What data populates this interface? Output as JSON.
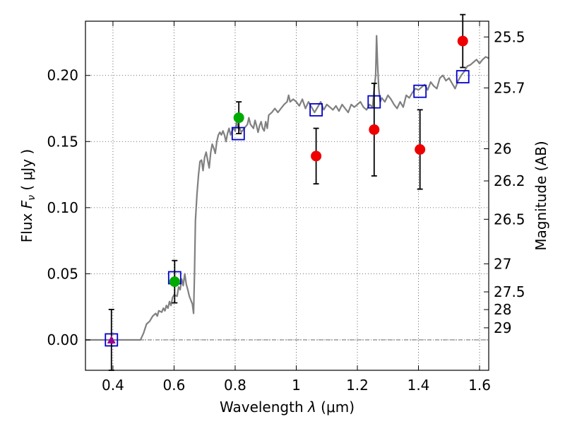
{
  "chart_data": {
    "type": "scatter",
    "title": "",
    "xlabel": {
      "main": "Wavelength ",
      "symbol": "λ",
      "unit": " (μm)"
    },
    "ylabel": {
      "main": "Flux  ",
      "symbol": "F",
      "sub": "ν",
      "unit": "  ( μJy )"
    },
    "ylabel_right": "Magnitude (AB)",
    "xlim": [
      0.31,
      1.63
    ],
    "ylim": [
      -0.023,
      0.241
    ],
    "x_ticks": [
      {
        "value": 0.4,
        "label": "0.4"
      },
      {
        "value": 0.6,
        "label": "0.6"
      },
      {
        "value": 0.8,
        "label": "0.8"
      },
      {
        "value": 1.0,
        "label": "1"
      },
      {
        "value": 1.2,
        "label": "1.2"
      },
      {
        "value": 1.4,
        "label": "1.4"
      },
      {
        "value": 1.6,
        "label": "1.6"
      }
    ],
    "y_ticks": [
      {
        "value": 0.0,
        "label": "0.00"
      },
      {
        "value": 0.05,
        "label": "0.05"
      },
      {
        "value": 0.1,
        "label": "0.10"
      },
      {
        "value": 0.15,
        "label": "0.15"
      },
      {
        "value": 0.2,
        "label": "0.20"
      }
    ],
    "mag_ticks": [
      {
        "label": "25.5",
        "mag": 25.5
      },
      {
        "label": "25.7",
        "mag": 25.7
      },
      {
        "label": "26",
        "mag": 26
      },
      {
        "label": "26.2",
        "mag": 26.2
      },
      {
        "label": "26.5",
        "mag": 26.5
      },
      {
        "label": "27",
        "mag": 27
      },
      {
        "label": "27.5",
        "mag": 27.5
      },
      {
        "label": "28",
        "mag": 28
      },
      {
        "label": "29",
        "mag": 29
      }
    ],
    "grid": true,
    "zero_line": true,
    "series": [
      {
        "name": "model spectrum",
        "kind": "line",
        "color": "#808080",
        "points": [
          [
            0.31,
            0.0
          ],
          [
            0.49,
            0.0
          ],
          [
            0.5,
            0.005
          ],
          [
            0.51,
            0.012
          ],
          [
            0.52,
            0.014
          ],
          [
            0.53,
            0.018
          ],
          [
            0.54,
            0.02
          ],
          [
            0.545,
            0.018
          ],
          [
            0.55,
            0.022
          ],
          [
            0.56,
            0.021
          ],
          [
            0.565,
            0.024
          ],
          [
            0.57,
            0.022
          ],
          [
            0.575,
            0.026
          ],
          [
            0.58,
            0.024
          ],
          [
            0.585,
            0.029
          ],
          [
            0.59,
            0.026
          ],
          [
            0.595,
            0.032
          ],
          [
            0.6,
            0.034
          ],
          [
            0.61,
            0.033
          ],
          [
            0.615,
            0.04
          ],
          [
            0.62,
            0.038
          ],
          [
            0.625,
            0.046
          ],
          [
            0.63,
            0.041
          ],
          [
            0.635,
            0.05
          ],
          [
            0.64,
            0.042
          ],
          [
            0.645,
            0.038
          ],
          [
            0.65,
            0.033
          ],
          [
            0.655,
            0.03
          ],
          [
            0.66,
            0.027
          ],
          [
            0.664,
            0.02
          ],
          [
            0.667,
            0.05
          ],
          [
            0.67,
            0.09
          ],
          [
            0.675,
            0.11
          ],
          [
            0.68,
            0.125
          ],
          [
            0.685,
            0.135
          ],
          [
            0.69,
            0.136
          ],
          [
            0.695,
            0.128
          ],
          [
            0.7,
            0.138
          ],
          [
            0.705,
            0.142
          ],
          [
            0.71,
            0.136
          ],
          [
            0.715,
            0.13
          ],
          [
            0.72,
            0.142
          ],
          [
            0.725,
            0.148
          ],
          [
            0.73,
            0.145
          ],
          [
            0.735,
            0.141
          ],
          [
            0.74,
            0.15
          ],
          [
            0.745,
            0.155
          ],
          [
            0.75,
            0.157
          ],
          [
            0.755,
            0.155
          ],
          [
            0.76,
            0.158
          ],
          [
            0.765,
            0.155
          ],
          [
            0.77,
            0.15
          ],
          [
            0.775,
            0.156
          ],
          [
            0.78,
            0.16
          ],
          [
            0.785,
            0.155
          ],
          [
            0.79,
            0.158
          ],
          [
            0.795,
            0.16
          ],
          [
            0.8,
            0.158
          ],
          [
            0.805,
            0.165
          ],
          [
            0.81,
            0.16
          ],
          [
            0.815,
            0.16
          ],
          [
            0.82,
            0.157
          ],
          [
            0.83,
            0.16
          ],
          [
            0.84,
            0.163
          ],
          [
            0.845,
            0.168
          ],
          [
            0.85,
            0.163
          ],
          [
            0.86,
            0.16
          ],
          [
            0.865,
            0.166
          ],
          [
            0.87,
            0.162
          ],
          [
            0.875,
            0.157
          ],
          [
            0.88,
            0.162
          ],
          [
            0.885,
            0.165
          ],
          [
            0.89,
            0.16
          ],
          [
            0.895,
            0.158
          ],
          [
            0.9,
            0.165
          ],
          [
            0.905,
            0.16
          ],
          [
            0.91,
            0.17
          ],
          [
            0.92,
            0.172
          ],
          [
            0.93,
            0.175
          ],
          [
            0.94,
            0.172
          ],
          [
            0.95,
            0.175
          ],
          [
            0.96,
            0.178
          ],
          [
            0.97,
            0.18
          ],
          [
            0.975,
            0.185
          ],
          [
            0.98,
            0.18
          ],
          [
            0.99,
            0.182
          ],
          [
            1.0,
            0.18
          ],
          [
            1.01,
            0.177
          ],
          [
            1.02,
            0.182
          ],
          [
            1.03,
            0.175
          ],
          [
            1.04,
            0.18
          ],
          [
            1.05,
            0.176
          ],
          [
            1.06,
            0.172
          ],
          [
            1.07,
            0.176
          ],
          [
            1.08,
            0.18
          ],
          [
            1.09,
            0.174
          ],
          [
            1.1,
            0.178
          ],
          [
            1.11,
            0.176
          ],
          [
            1.12,
            0.174
          ],
          [
            1.13,
            0.177
          ],
          [
            1.14,
            0.173
          ],
          [
            1.15,
            0.178
          ],
          [
            1.16,
            0.175
          ],
          [
            1.17,
            0.172
          ],
          [
            1.18,
            0.178
          ],
          [
            1.19,
            0.176
          ],
          [
            1.2,
            0.178
          ],
          [
            1.21,
            0.18
          ],
          [
            1.22,
            0.176
          ],
          [
            1.23,
            0.174
          ],
          [
            1.24,
            0.178
          ],
          [
            1.25,
            0.176
          ],
          [
            1.255,
            0.19
          ],
          [
            1.26,
            0.2
          ],
          [
            1.263,
            0.23
          ],
          [
            1.266,
            0.21
          ],
          [
            1.27,
            0.19
          ],
          [
            1.275,
            0.18
          ],
          [
            1.28,
            0.183
          ],
          [
            1.29,
            0.18
          ],
          [
            1.3,
            0.185
          ],
          [
            1.31,
            0.182
          ],
          [
            1.32,
            0.178
          ],
          [
            1.33,
            0.175
          ],
          [
            1.34,
            0.18
          ],
          [
            1.35,
            0.176
          ],
          [
            1.36,
            0.185
          ],
          [
            1.37,
            0.183
          ],
          [
            1.38,
            0.187
          ],
          [
            1.39,
            0.19
          ],
          [
            1.4,
            0.189
          ],
          [
            1.41,
            0.191
          ],
          [
            1.42,
            0.193
          ],
          [
            1.43,
            0.189
          ],
          [
            1.44,
            0.195
          ],
          [
            1.45,
            0.192
          ],
          [
            1.46,
            0.19
          ],
          [
            1.47,
            0.198
          ],
          [
            1.48,
            0.2
          ],
          [
            1.49,
            0.196
          ],
          [
            1.5,
            0.198
          ],
          [
            1.51,
            0.194
          ],
          [
            1.52,
            0.19
          ],
          [
            1.53,
            0.196
          ],
          [
            1.54,
            0.2
          ],
          [
            1.55,
            0.203
          ],
          [
            1.56,
            0.207
          ],
          [
            1.57,
            0.208
          ],
          [
            1.58,
            0.21
          ],
          [
            1.59,
            0.212
          ],
          [
            1.6,
            0.209
          ],
          [
            1.61,
            0.212
          ],
          [
            1.62,
            0.214
          ],
          [
            1.63,
            0.213
          ]
        ]
      },
      {
        "name": "model band fluxes",
        "kind": "open-square",
        "color": "#0000cc",
        "points": [
          {
            "x": 0.395,
            "y": 0.0
          },
          {
            "x": 0.602,
            "y": 0.047
          },
          {
            "x": 0.81,
            "y": 0.156
          },
          {
            "x": 1.065,
            "y": 0.174
          },
          {
            "x": 1.255,
            "y": 0.18
          },
          {
            "x": 1.405,
            "y": 0.188
          },
          {
            "x": 1.545,
            "y": 0.199
          }
        ]
      },
      {
        "name": "upper-limit",
        "kind": "triangle",
        "color": "#990099",
        "points": [
          {
            "x": 0.395,
            "y": 0.0,
            "err": 0.023
          }
        ]
      },
      {
        "name": "optical detections",
        "kind": "circle",
        "color": "#00aa00",
        "points": [
          {
            "x": 0.602,
            "y": 0.044,
            "err": 0.016
          },
          {
            "x": 0.812,
            "y": 0.168,
            "err": 0.012
          }
        ]
      },
      {
        "name": "near-IR detections",
        "kind": "circle",
        "color": "#ee0000",
        "points": [
          {
            "x": 1.065,
            "y": 0.139,
            "err": 0.021
          },
          {
            "x": 1.255,
            "y": 0.159,
            "err": 0.035
          },
          {
            "x": 1.405,
            "y": 0.144,
            "err": 0.03
          },
          {
            "x": 1.545,
            "y": 0.226,
            "err": 0.02
          }
        ]
      }
    ]
  }
}
